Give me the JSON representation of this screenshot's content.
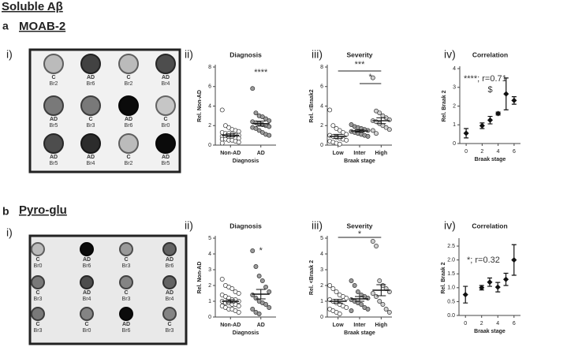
{
  "figure": {
    "heading": "Soluble Aβ",
    "section_a": {
      "letter": "a",
      "title": "MOAB-2",
      "panel": "i)",
      "blot": [
        [
          [
            "C",
            "Br2"
          ],
          [
            "AD",
            "Br6"
          ],
          [
            "C",
            "Br2"
          ],
          [
            "AD",
            "Br4"
          ]
        ],
        [
          [
            "AD",
            "Br5"
          ],
          [
            "C",
            "Br3"
          ],
          [
            "AD",
            "Br6"
          ],
          [
            "C",
            "Br0"
          ]
        ],
        [
          [
            "AD",
            "Br5"
          ],
          [
            "AD",
            "Br4"
          ],
          [
            "C",
            "Br2"
          ],
          [
            "AD",
            "Br5"
          ]
        ]
      ]
    },
    "section_b": {
      "letter": "b",
      "title": "Pyro-glu",
      "panel": "i)",
      "blot": [
        [
          [
            "C",
            "Br0"
          ],
          [
            "AD",
            "Br6"
          ],
          [
            "C",
            "Br3"
          ],
          [
            "AD",
            "Br6"
          ]
        ],
        [
          [
            "C",
            "Br3"
          ],
          [
            "AD",
            "Br4"
          ],
          [
            "C",
            "Br3"
          ],
          [
            "AD",
            "Br4"
          ]
        ],
        [
          [
            "C",
            "Br3"
          ],
          [
            "C",
            "Br0"
          ],
          [
            "AD",
            "Br6"
          ],
          [
            "C",
            "Br3"
          ]
        ]
      ]
    }
  },
  "chart_data": [
    {
      "type": "strip",
      "panel_label": "ii)",
      "title": "Diagnosis",
      "x_label": "Diagnosis",
      "y_label": "Rel. Non-AD",
      "categories": [
        "Non-AD",
        "AD"
      ],
      "colors": [
        "#ffffff",
        "#9a9a9a"
      ],
      "groups": [
        {
          "values": [
            3.6,
            2.0,
            1.8,
            1.6,
            1.5,
            1.4,
            1.3,
            1.2,
            1.2,
            1.1,
            1.0,
            1.0,
            0.9,
            0.9,
            0.8,
            0.8,
            0.7,
            0.7,
            0.6,
            0.6,
            0.5,
            0.5,
            0.4,
            0.3,
            0.2
          ],
          "mean": 1.0,
          "sem": 0.15
        },
        {
          "values": [
            5.8,
            3.3,
            3.0,
            2.9,
            2.7,
            2.5,
            2.4,
            2.3,
            2.2,
            2.1,
            2.0,
            1.9,
            1.8,
            1.7,
            1.5,
            1.3,
            1.1,
            1.0
          ],
          "mean": 2.2,
          "sem": 0.25
        }
      ],
      "ylim": [
        0,
        8
      ],
      "yticks": [
        0,
        2,
        4,
        6,
        8
      ],
      "annotations": [
        "****"
      ]
    },
    {
      "type": "strip",
      "panel_label": "iii)",
      "title": "Severity",
      "x_label": "Braak stage",
      "y_label": "Rel. <Braak2",
      "categories": [
        "Low",
        "Inter",
        "High"
      ],
      "colors": [
        "#ffffff",
        "#9a9a9a",
        "#cfcfcf"
      ],
      "groups": [
        {
          "values": [
            3.6,
            2.0,
            1.7,
            1.5,
            1.3,
            1.1,
            1.0,
            0.9,
            0.8,
            0.7,
            0.6,
            0.5,
            0.4,
            0.3,
            0.2,
            0.1
          ],
          "mean": 0.9,
          "sem": 0.2
        },
        {
          "values": [
            2.1,
            1.9,
            1.8,
            1.7,
            1.6,
            1.5,
            1.4,
            1.3,
            1.2,
            1.1,
            1.0,
            0.9
          ],
          "mean": 1.45,
          "sem": 0.12
        },
        {
          "values": [
            6.9,
            3.5,
            3.3,
            3.0,
            2.8,
            2.6,
            2.5,
            2.4,
            2.2,
            2.0,
            1.8,
            1.6,
            1.5,
            1.2
          ],
          "mean": 2.5,
          "sem": 0.3
        }
      ],
      "ylim": [
        0,
        8
      ],
      "yticks": [
        0,
        2,
        4,
        6,
        8
      ],
      "annotations": [
        "***",
        "*"
      ]
    },
    {
      "type": "errorbar",
      "panel_label": "iv)",
      "title": "Correlation",
      "x_label": "Braak stage",
      "y_label": "Rel. Braak 2",
      "x": [
        0,
        2,
        3,
        4,
        5,
        6
      ],
      "values": [
        0.55,
        0.95,
        1.25,
        1.6,
        2.65,
        2.3
      ],
      "errors": [
        0.25,
        0.15,
        0.2,
        0.08,
        0.85,
        0.2
      ],
      "xlim": [
        -0.8,
        6.8
      ],
      "xticks": [
        0,
        2,
        4,
        6
      ],
      "ylim": [
        0,
        4
      ],
      "yticks": [
        0,
        1,
        2,
        3,
        4
      ],
      "annotations": [
        "****; r=0.71",
        "$"
      ]
    },
    {
      "type": "strip",
      "panel_label": "ii)",
      "title": "Diagnosis",
      "x_label": "Diagnosis",
      "y_label": "Rel. Non-AD",
      "categories": [
        "Non-AD",
        "AD"
      ],
      "colors": [
        "#ffffff",
        "#9a9a9a"
      ],
      "groups": [
        {
          "values": [
            2.4,
            2.0,
            1.9,
            1.8,
            1.6,
            1.5,
            1.4,
            1.3,
            1.2,
            1.1,
            1.1,
            1.0,
            1.0,
            0.9,
            0.9,
            0.8,
            0.8,
            0.7,
            0.7,
            0.6,
            0.5,
            0.5,
            0.4,
            0.3
          ],
          "mean": 1.0,
          "sem": 0.1
        },
        {
          "values": [
            4.2,
            3.2,
            2.6,
            2.3,
            1.9,
            1.6,
            1.4,
            1.2,
            1.0,
            0.9,
            0.8,
            0.6,
            0.5,
            0.3,
            0.2
          ],
          "mean": 1.45,
          "sem": 0.3
        }
      ],
      "ylim": [
        0,
        5
      ],
      "yticks": [
        0,
        1,
        2,
        3,
        4,
        5
      ],
      "annotations": [
        "*"
      ]
    },
    {
      "type": "strip",
      "panel_label": "iii)",
      "title": "Severity",
      "x_label": "Braak stage",
      "y_label": "Rel. <Braak 2",
      "categories": [
        "Low",
        "Inter",
        "High"
      ],
      "colors": [
        "#ffffff",
        "#9a9a9a",
        "#cfcfcf"
      ],
      "groups": [
        {
          "values": [
            2.0,
            1.8,
            1.6,
            1.4,
            1.3,
            1.2,
            1.1,
            1.0,
            0.9,
            0.8,
            0.7,
            0.6,
            0.5,
            0.4,
            0.3,
            0.2
          ],
          "mean": 1.0,
          "sem": 0.12
        },
        {
          "values": [
            2.3,
            2.0,
            1.6,
            1.4,
            1.3,
            1.2,
            1.1,
            1.0,
            0.9,
            0.8,
            0.6,
            0.5,
            0.4
          ],
          "mean": 1.15,
          "sem": 0.15
        },
        {
          "values": [
            4.8,
            4.5,
            2.3,
            2.0,
            1.8,
            1.6,
            1.5,
            1.3,
            1.0,
            0.8,
            0.5,
            0.3
          ],
          "mean": 1.7,
          "sem": 0.35
        }
      ],
      "ylim": [
        0,
        5
      ],
      "yticks": [
        0,
        1,
        2,
        3,
        4,
        5
      ],
      "annotations": [
        "*"
      ]
    },
    {
      "type": "errorbar",
      "panel_label": "iv)",
      "title": "Correlation",
      "x_label": "Braak stage",
      "y_label": "Rel. Braak 2",
      "x": [
        0,
        2,
        3,
        4,
        5,
        6
      ],
      "values": [
        0.75,
        1.0,
        1.2,
        1.02,
        1.3,
        2.0
      ],
      "errors": [
        0.3,
        0.08,
        0.15,
        0.17,
        0.22,
        0.55
      ],
      "xlim": [
        -0.8,
        6.8
      ],
      "xticks": [
        0,
        2,
        4,
        6
      ],
      "ylim": [
        0,
        2.7
      ],
      "yticks": [
        {
          "value": 0,
          "label": "0.0"
        },
        0.5,
        {
          "value": 1,
          "label": "1.0"
        },
        1.5,
        {
          "value": 2,
          "label": "2.0"
        },
        2.5
      ],
      "annotations": [
        "*; r=0.32"
      ]
    }
  ]
}
